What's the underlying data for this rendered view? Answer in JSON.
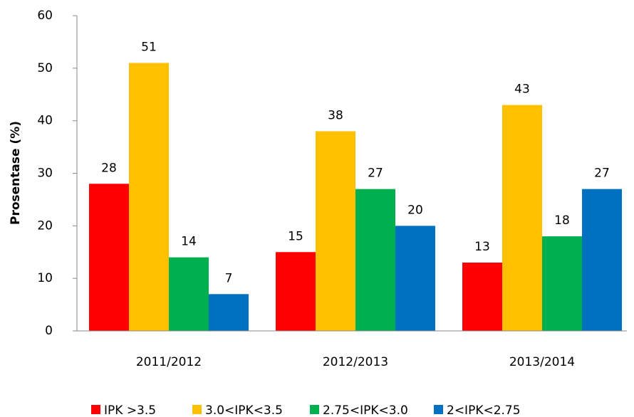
{
  "chart_data": {
    "type": "bar",
    "ylabel": "Prosentase (%)",
    "categories": [
      "2011/2012",
      "2012/2013",
      "2013/2014"
    ],
    "series": [
      {
        "name": "IPK >3.5",
        "color": "#ff0000",
        "values": [
          28,
          15,
          13
        ]
      },
      {
        "name": "3.0<IPK<3.5",
        "color": "#ffc000",
        "values": [
          51,
          38,
          43
        ]
      },
      {
        "name": "2.75<IPK<3.0",
        "color": "#00b050",
        "values": [
          14,
          27,
          18
        ]
      },
      {
        "name": "2<IPK<2.75",
        "color": "#0070c0",
        "values": [
          7,
          20,
          27
        ]
      }
    ],
    "ylim": [
      0,
      60
    ],
    "yticks": [
      0,
      10,
      20,
      30,
      40,
      50,
      60
    ],
    "legend": "bottom"
  }
}
